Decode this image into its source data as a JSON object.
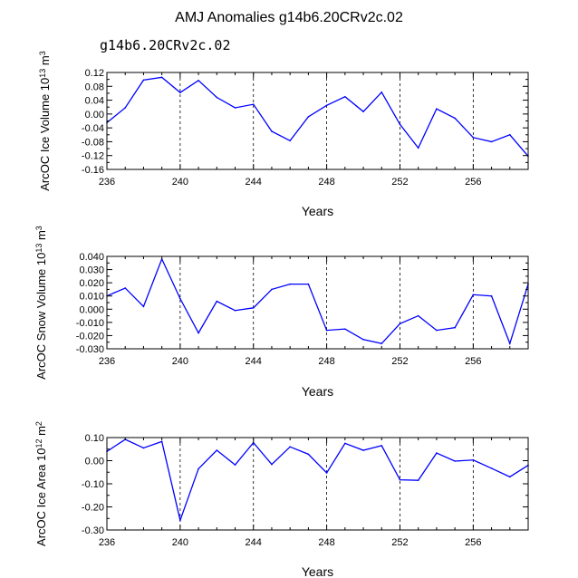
{
  "page_title": "AMJ Anomalies g14b6.20CRv2c.02",
  "subtitle": "g14b6.20CRv2c.02",
  "colors": {
    "line": "#0000ff",
    "subtitle": "#4a4adf",
    "axis": "#000000"
  },
  "chart_data": [
    {
      "type": "line",
      "xlabel": "Years",
      "ylabel": {
        "base": "ArcOC Ice Volume 10",
        "sup1": "13",
        "mid": " m",
        "sup2": "3"
      },
      "x": [
        236,
        237,
        238,
        239,
        240,
        241,
        242,
        243,
        244,
        245,
        246,
        247,
        248,
        249,
        250,
        251,
        252,
        253,
        254,
        255,
        256,
        257,
        258,
        259
      ],
      "values": [
        -0.025,
        0.018,
        0.098,
        0.106,
        0.062,
        0.097,
        0.048,
        0.018,
        0.028,
        -0.05,
        -0.077,
        -0.008,
        0.025,
        0.05,
        0.007,
        0.063,
        -0.03,
        -0.098,
        0.015,
        -0.012,
        -0.068,
        -0.08,
        -0.06,
        -0.122
      ],
      "xlim": [
        236,
        259
      ],
      "ylim": [
        -0.16,
        0.12
      ],
      "xticks": [
        236,
        240,
        244,
        248,
        252,
        256
      ],
      "xtick_labels": [
        "236",
        "240",
        "244",
        "248",
        "252",
        "256"
      ],
      "yticks": [
        -0.16,
        -0.12,
        -0.08,
        -0.04,
        0.0,
        0.04,
        0.08,
        0.12
      ],
      "ytick_labels": [
        "-0.16",
        "-0.12",
        "-0.08",
        "-0.04",
        "0.00",
        "0.04",
        "0.08",
        "0.12"
      ],
      "ytick_minor_step": 0.02,
      "gridlines": "vertical dashed at major x ticks"
    },
    {
      "type": "line",
      "xlabel": "Years",
      "ylabel": {
        "base": "ArcOC Snow Volume 10",
        "sup1": "13",
        "mid": " m",
        "sup2": "3"
      },
      "x": [
        236,
        237,
        238,
        239,
        240,
        241,
        242,
        243,
        244,
        245,
        246,
        247,
        248,
        249,
        250,
        251,
        252,
        253,
        254,
        255,
        256,
        257,
        258,
        259
      ],
      "values": [
        0.01,
        0.016,
        0.002,
        0.038,
        0.008,
        -0.018,
        0.006,
        -0.001,
        0.001,
        0.015,
        0.019,
        0.019,
        -0.016,
        -0.015,
        -0.023,
        -0.026,
        -0.011,
        -0.005,
        -0.016,
        -0.014,
        0.011,
        0.01,
        -0.026,
        0.019
      ],
      "xlim": [
        236,
        259
      ],
      "ylim": [
        -0.03,
        0.04
      ],
      "xticks": [
        236,
        240,
        244,
        248,
        252,
        256
      ],
      "xtick_labels": [
        "236",
        "240",
        "244",
        "248",
        "252",
        "256"
      ],
      "yticks": [
        -0.03,
        -0.02,
        -0.01,
        0.0,
        0.01,
        0.02,
        0.03,
        0.04
      ],
      "ytick_labels": [
        "-0.030",
        "-0.020",
        "-0.010",
        "0.000",
        "0.010",
        "0.020",
        "0.030",
        "0.040"
      ],
      "ytick_minor_step": 0.005,
      "gridlines": "vertical dashed at major x ticks"
    },
    {
      "type": "line",
      "xlabel": "Years",
      "ylabel": {
        "base": "ArcOC Ice Area 10",
        "sup1": "12",
        "mid": " m",
        "sup2": "2"
      },
      "x": [
        236,
        237,
        238,
        239,
        240,
        241,
        242,
        243,
        244,
        245,
        246,
        247,
        248,
        249,
        250,
        251,
        252,
        253,
        254,
        255,
        256,
        257,
        258,
        259
      ],
      "values": [
        0.04,
        0.092,
        0.055,
        0.083,
        -0.258,
        -0.035,
        0.045,
        -0.018,
        0.078,
        -0.016,
        0.06,
        0.028,
        -0.053,
        0.075,
        0.045,
        0.065,
        -0.083,
        -0.085,
        0.033,
        -0.002,
        0.003,
        -0.033,
        -0.07,
        -0.02
      ],
      "xlim": [
        236,
        259
      ],
      "ylim": [
        -0.3,
        0.1
      ],
      "xticks": [
        236,
        240,
        244,
        248,
        252,
        256
      ],
      "xtick_labels": [
        "236",
        "240",
        "244",
        "248",
        "252",
        "256"
      ],
      "yticks": [
        -0.3,
        -0.2,
        -0.1,
        0.0,
        0.1
      ],
      "ytick_labels": [
        "-0.30",
        "-0.20",
        "-0.10",
        "0.00",
        "0.10"
      ],
      "ytick_minor_step": 0.05,
      "gridlines": "vertical dashed at major x ticks"
    }
  ]
}
